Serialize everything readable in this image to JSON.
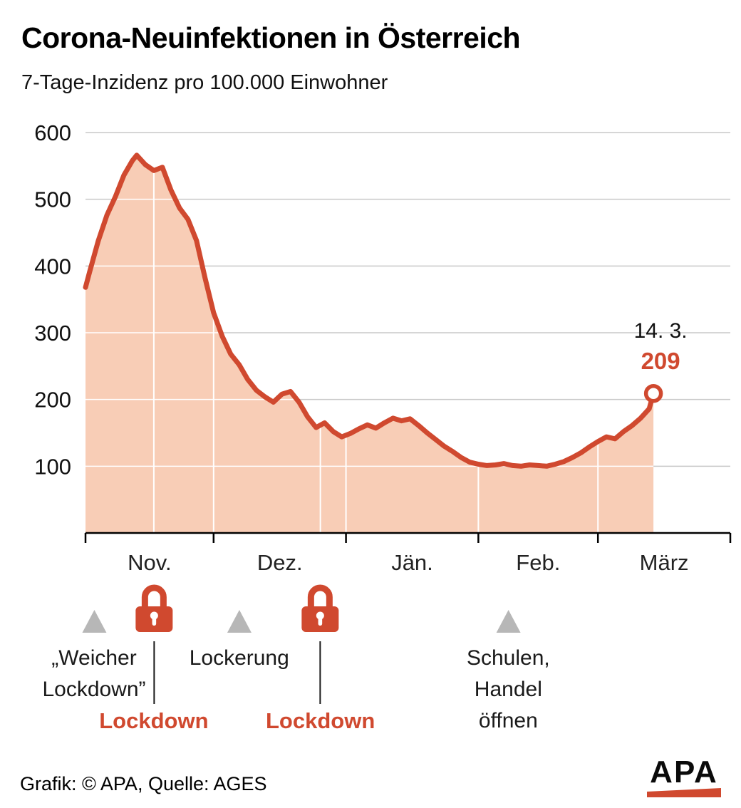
{
  "header": {
    "title": "Corona-Neuinfektionen in Österreich",
    "subtitle": "7-Tage-Inzidenz pro 100.000 Einwohner"
  },
  "chart_data": {
    "type": "area",
    "title": "Corona-Neuinfektionen in Österreich",
    "ylabel": "7-Tage-Inzidenz pro 100.000 Einwohner",
    "ylim": [
      0,
      600
    ],
    "yticks": [
      100,
      200,
      300,
      400,
      500,
      600
    ],
    "months": [
      {
        "label": "Nov.",
        "days": 30
      },
      {
        "label": "Dez.",
        "days": 31
      },
      {
        "label": "Jän.",
        "days": 31
      },
      {
        "label": "Feb.",
        "days": 28
      },
      {
        "label": "März",
        "days": 31
      }
    ],
    "series_name": "7-Tage-Inzidenz",
    "points": [
      [
        "1.11",
        368
      ],
      [
        "2.11",
        392
      ],
      [
        "4.11",
        438
      ],
      [
        "6.11",
        476
      ],
      [
        "8.11",
        504
      ],
      [
        "10.11",
        536
      ],
      [
        "12.11",
        558
      ],
      [
        "13.11",
        566
      ],
      [
        "15.11",
        552
      ],
      [
        "17.11",
        543
      ],
      [
        "19.11",
        548
      ],
      [
        "21.11",
        514
      ],
      [
        "23.11",
        487
      ],
      [
        "25.11",
        470
      ],
      [
        "27.11",
        438
      ],
      [
        "29.11",
        382
      ],
      [
        "1.12",
        330
      ],
      [
        "3.12",
        295
      ],
      [
        "5.12",
        268
      ],
      [
        "7.12",
        252
      ],
      [
        "9.12",
        230
      ],
      [
        "11.12",
        214
      ],
      [
        "13.12",
        204
      ],
      [
        "15.12",
        196
      ],
      [
        "17.12",
        208
      ],
      [
        "19.12",
        212
      ],
      [
        "21.12",
        196
      ],
      [
        "23.12",
        174
      ],
      [
        "25.12",
        158
      ],
      [
        "27.12",
        165
      ],
      [
        "29.12",
        152
      ],
      [
        "31.12",
        144
      ],
      [
        "2.1",
        149
      ],
      [
        "4.1",
        156
      ],
      [
        "6.1",
        162
      ],
      [
        "8.1",
        157
      ],
      [
        "10.1",
        165
      ],
      [
        "12.1",
        172
      ],
      [
        "14.1",
        168
      ],
      [
        "16.1",
        171
      ],
      [
        "18.1",
        161
      ],
      [
        "20.1",
        150
      ],
      [
        "22.1",
        140
      ],
      [
        "24.1",
        130
      ],
      [
        "26.1",
        122
      ],
      [
        "28.1",
        113
      ],
      [
        "30.1",
        106
      ],
      [
        "1.2",
        103
      ],
      [
        "3.2",
        101
      ],
      [
        "5.2",
        102
      ],
      [
        "7.2",
        104
      ],
      [
        "9.2",
        101
      ],
      [
        "11.2",
        100
      ],
      [
        "13.2",
        102
      ],
      [
        "15.2",
        101
      ],
      [
        "17.2",
        100
      ],
      [
        "19.2",
        103
      ],
      [
        "21.2",
        107
      ],
      [
        "23.2",
        113
      ],
      [
        "25.2",
        120
      ],
      [
        "27.2",
        129
      ],
      [
        "1.3",
        137
      ],
      [
        "3.3",
        144
      ],
      [
        "5.3",
        141
      ],
      [
        "7.3",
        152
      ],
      [
        "9.3",
        161
      ],
      [
        "11.3",
        172
      ],
      [
        "13.3",
        186
      ],
      [
        "14.3",
        209
      ]
    ],
    "endpoint": {
      "date_label": "14. 3.",
      "value": 209
    },
    "colors": {
      "line": "#d0492f",
      "fill": "#f8cdb6",
      "grid": "#c9c9c9",
      "inner_grid": "#ffffff",
      "axis": "#000000"
    },
    "legend_position": "none",
    "grid": true
  },
  "events": [
    {
      "kind": "triangle",
      "date": "3.11",
      "label_lines": [
        "„Weicher",
        "Lockdown”"
      ]
    },
    {
      "kind": "lock",
      "date": "17.11",
      "label": "Lockdown"
    },
    {
      "kind": "triangle",
      "date": "7.12",
      "label_lines": [
        "Lockerung"
      ]
    },
    {
      "kind": "lock",
      "date": "26.12",
      "label": "Lockdown"
    },
    {
      "kind": "triangle",
      "date": "8.2",
      "label_lines": [
        "Schulen,",
        "Handel",
        "öffnen"
      ]
    }
  ],
  "events_style": {
    "accent_red": "#d0492f",
    "marker_gray": "#b7b7b7"
  },
  "footer": {
    "credit": "Grafik: © APA, Quelle: AGES",
    "logo_text": "APA"
  }
}
